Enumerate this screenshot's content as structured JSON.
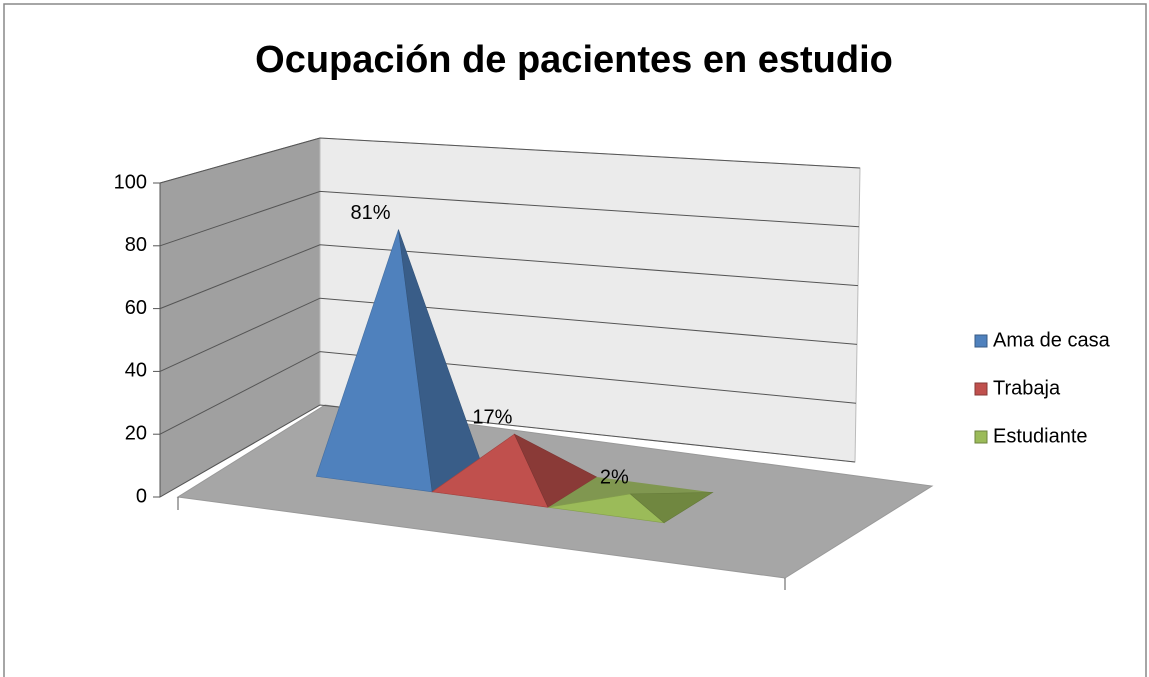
{
  "chart_data": {
    "type": "pyramid",
    "title": "Ocupación de pacientes en estudio",
    "series": [
      {
        "name": "Ama de casa",
        "color": "#4f81bd",
        "values": [
          81
        ],
        "value_labels": [
          "81%"
        ]
      },
      {
        "name": "Trabaja",
        "color": "#c0504d",
        "values": [
          17
        ],
        "value_labels": [
          "17%"
        ]
      },
      {
        "name": "Estudiante",
        "color": "#9bbb59",
        "values": [
          2
        ],
        "value_labels": [
          "2%"
        ]
      }
    ],
    "ylim": [
      0,
      100
    ],
    "yticks": [
      0,
      20,
      40,
      60,
      80,
      100
    ],
    "grid": true,
    "legend": "right"
  }
}
